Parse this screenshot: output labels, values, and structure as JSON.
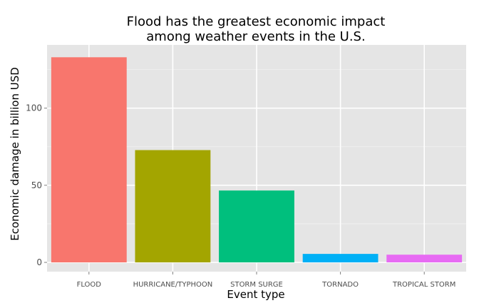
{
  "chart_data": {
    "type": "bar",
    "title_lines": [
      "Flood has the greatest economic impact",
      "among weather events in the U.S."
    ],
    "xlabel": "Event type",
    "ylabel": "Economic damage in billion USD",
    "categories": [
      "FLOOD",
      "HURRICANE/TYPHOON",
      "STORM SURGE",
      "TORNADO",
      "TROPICAL STORM"
    ],
    "values": [
      133,
      72.8,
      46.6,
      5.5,
      5.0
    ],
    "colors": [
      "#f8766d",
      "#a3a500",
      "#00bf7d",
      "#00b0f6",
      "#e76bf3"
    ],
    "ylim": [
      -6,
      141
    ],
    "yticks": [
      0,
      50,
      100
    ],
    "ytick_labels": [
      "0",
      "50",
      "100"
    ],
    "panel_background": "#e5e5e5",
    "grid": true,
    "legend": "none"
  }
}
